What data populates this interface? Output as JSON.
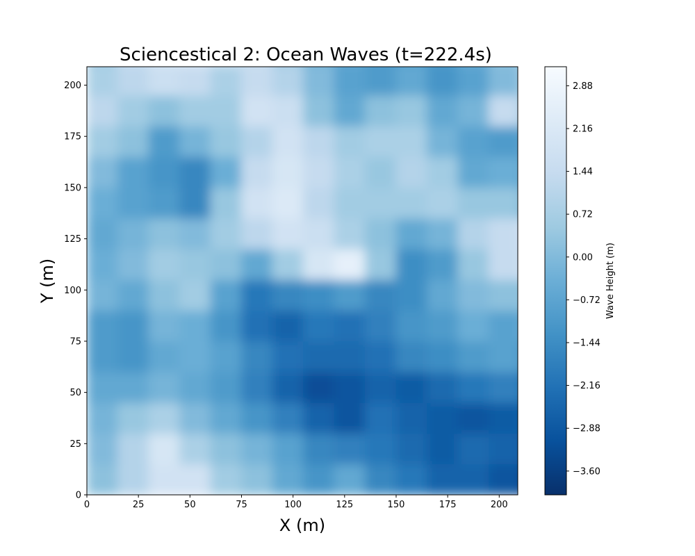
{
  "chart_data": {
    "type": "heatmap",
    "title": "Sciencestical 2:  Ocean Waves (t=222.4s)",
    "xlabel": "X (m)",
    "ylabel": "Y (m)",
    "xlim": [
      0,
      209
    ],
    "ylim": [
      0,
      209
    ],
    "x_ticks": [
      0,
      25,
      50,
      75,
      100,
      125,
      150,
      175,
      200
    ],
    "y_ticks": [
      0,
      25,
      50,
      75,
      100,
      125,
      150,
      175,
      200
    ],
    "colorbar": {
      "label": "Wave Height (m)",
      "colormap": "Blues_r",
      "range": [
        -4.0,
        3.2
      ],
      "ticks": [
        2.88,
        2.16,
        1.44,
        0.72,
        0.0,
        -0.72,
        -1.44,
        -2.16,
        -2.88,
        -3.6
      ],
      "tick_labels": [
        "2.88",
        "2.16",
        "1.44",
        "0.72",
        "0.00",
        "−0.72",
        "−1.44",
        "−2.16",
        "−2.88",
        "−3.60"
      ],
      "colors": [
        "#08306b",
        "#08519c",
        "#2171b5",
        "#4292c6",
        "#6baed6",
        "#9ecae1",
        "#c6dbef",
        "#deebf7",
        "#f7fbff"
      ]
    },
    "grid_resolution_m": 15,
    "values": [
      [
        0.2,
        1.0,
        1.8,
        1.8,
        0.6,
        0.2,
        -0.6,
        -1.2,
        -0.6,
        -1.6,
        -2.0,
        -2.6,
        -2.6,
        -3.0,
        -3.2
      ],
      [
        0.0,
        1.0,
        2.0,
        0.8,
        0.2,
        -0.2,
        -0.8,
        -1.6,
        -1.8,
        -2.0,
        -2.4,
        -2.8,
        -2.4,
        -2.6,
        -2.8
      ],
      [
        -0.2,
        0.4,
        0.8,
        0.0,
        -0.6,
        -1.2,
        -1.8,
        -2.6,
        -3.0,
        -2.2,
        -2.6,
        -2.8,
        -3.0,
        -2.8,
        -2.6
      ],
      [
        -0.6,
        -0.6,
        -0.2,
        -0.6,
        -1.0,
        -1.8,
        -2.6,
        -3.2,
        -3.0,
        -2.6,
        -2.8,
        -2.4,
        -2.0,
        -1.8,
        -2.0
      ],
      [
        -1.0,
        -1.2,
        -0.6,
        -0.4,
        -0.8,
        -1.6,
        -2.2,
        -2.4,
        -2.4,
        -2.2,
        -1.6,
        -1.4,
        -1.0,
        -0.8,
        -1.2
      ],
      [
        -1.0,
        -1.2,
        -0.2,
        -0.4,
        -1.2,
        -2.2,
        -2.6,
        -2.0,
        -2.2,
        -1.8,
        -1.2,
        -1.0,
        -0.4,
        -0.8,
        -0.6
      ],
      [
        -0.2,
        -0.6,
        0.2,
        0.6,
        -0.8,
        -2.0,
        -1.6,
        -1.4,
        -1.0,
        -1.6,
        -1.4,
        -0.6,
        0.0,
        0.2,
        0.2
      ],
      [
        -0.4,
        0.0,
        0.6,
        0.4,
        0.2,
        -0.6,
        0.6,
        2.0,
        2.6,
        0.4,
        -1.4,
        -1.0,
        0.4,
        1.4,
        1.6
      ],
      [
        -0.6,
        -0.2,
        0.2,
        0.0,
        0.6,
        1.2,
        1.8,
        1.6,
        0.8,
        0.2,
        -0.6,
        -0.2,
        1.0,
        1.4,
        1.8
      ],
      [
        -0.4,
        -0.8,
        -1.0,
        -1.6,
        0.4,
        1.8,
        2.2,
        1.2,
        0.6,
        0.6,
        0.6,
        0.8,
        0.4,
        0.4,
        0.0
      ],
      [
        0.0,
        -0.8,
        -1.2,
        -1.6,
        -0.4,
        1.4,
        2.0,
        1.4,
        0.8,
        0.4,
        1.0,
        0.6,
        -0.6,
        -0.4,
        -0.6
      ],
      [
        0.6,
        0.2,
        -1.0,
        -0.2,
        0.4,
        1.0,
        1.8,
        1.2,
        0.6,
        0.8,
        0.8,
        -0.2,
        -0.8,
        -1.0,
        -0.8
      ],
      [
        1.2,
        0.6,
        0.2,
        0.6,
        0.6,
        1.8,
        1.6,
        0.2,
        -0.6,
        0.2,
        0.4,
        -0.6,
        -0.2,
        1.4,
        0.6
      ],
      [
        0.8,
        1.2,
        1.6,
        1.4,
        0.8,
        1.4,
        1.0,
        0.0,
        -0.8,
        -1.0,
        -0.6,
        -1.2,
        -0.8,
        0.0,
        0.6
      ],
      [
        0.6,
        1.6,
        2.2,
        2.6,
        2.4,
        1.6,
        0.6,
        -0.2,
        -0.6,
        -1.0,
        -0.8,
        -1.0,
        -0.4,
        0.2,
        1.2
      ]
    ]
  }
}
